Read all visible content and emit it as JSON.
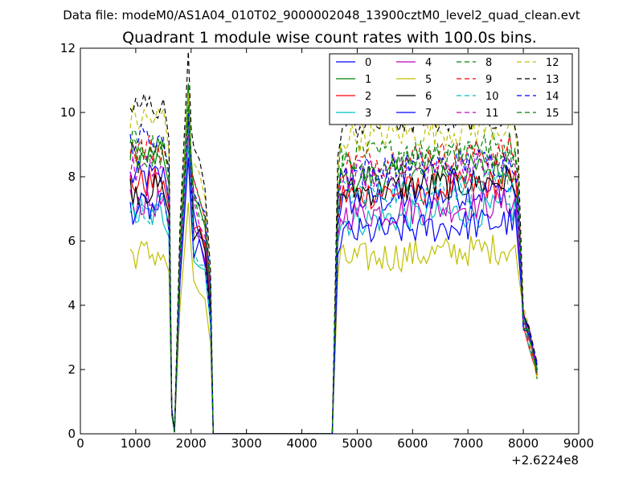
{
  "chart_data": {
    "type": "line",
    "suptitle": "Data file: modeM0/AS1A04_010T02_9000002048_13900cztM0_level2_quad_clean.evt",
    "title": "Quadrant 1 module wise count rates with 100.0s bins.",
    "xlabel": "",
    "ylabel": "",
    "x_offset_label": "+2.6224e8",
    "xlim": [
      0,
      9000
    ],
    "ylim": [
      0,
      12
    ],
    "xticks": [
      0,
      1000,
      2000,
      3000,
      4000,
      5000,
      6000,
      7000,
      8000,
      9000
    ],
    "xtick_labels": [
      "0",
      "1000",
      "2000",
      "3000",
      "4000",
      "5000",
      "6000",
      "7000",
      "8000",
      "9000"
    ],
    "yticks": [
      0,
      2,
      4,
      6,
      8,
      10,
      12
    ],
    "ytick_labels": [
      "0",
      "2",
      "4",
      "6",
      "8",
      "10",
      "12"
    ],
    "grid": false,
    "legend_position": "top-right",
    "legend_columns": 4,
    "series": [
      {
        "name": "0",
        "color": "#0000ff",
        "dash": "solid",
        "level": 7.2,
        "spike": 9.8,
        "early": 8.0
      },
      {
        "name": "1",
        "color": "#008000",
        "dash": "solid",
        "level": 7.9,
        "spike": 10.9,
        "early": 8.6
      },
      {
        "name": "2",
        "color": "#ff0000",
        "dash": "solid",
        "level": 7.4,
        "spike": 9.6,
        "early": 7.8
      },
      {
        "name": "3",
        "color": "#00bfbf",
        "dash": "solid",
        "level": 6.6,
        "spike": 9.0,
        "early": 6.8
      },
      {
        "name": "4",
        "color": "#bf00bf",
        "dash": "solid",
        "level": 6.8,
        "spike": 9.4,
        "early": 7.2
      },
      {
        "name": "5",
        "color": "#bfbf00",
        "dash": "solid",
        "level": 5.4,
        "spike": 7.2,
        "early": 5.6
      },
      {
        "name": "6",
        "color": "#000000",
        "dash": "solid",
        "level": 7.5,
        "spike": 9.9,
        "early": 7.6
      },
      {
        "name": "7",
        "color": "#0000ff",
        "dash": "solid",
        "level": 6.2,
        "spike": 8.6,
        "early": 7.0
      },
      {
        "name": "8",
        "color": "#008000",
        "dash": "dashed",
        "level": 8.6,
        "spike": 10.4,
        "early": 9.0
      },
      {
        "name": "9",
        "color": "#ff0000",
        "dash": "dashed",
        "level": 8.4,
        "spike": 10.2,
        "early": 8.9
      },
      {
        "name": "10",
        "color": "#00bfbf",
        "dash": "dashed",
        "level": 7.4,
        "spike": 9.6,
        "early": 7.0
      },
      {
        "name": "11",
        "color": "#bf00bf",
        "dash": "dashed",
        "level": 8.0,
        "spike": 10.0,
        "early": 8.2
      },
      {
        "name": "12",
        "color": "#bfbf00",
        "dash": "dashed",
        "level": 9.2,
        "spike": 10.6,
        "early": 9.8
      },
      {
        "name": "13",
        "color": "#000000",
        "dash": "dashed",
        "level": 9.6,
        "spike": 11.9,
        "early": 10.2
      },
      {
        "name": "14",
        "color": "#0000ff",
        "dash": "dashed",
        "level": 8.1,
        "spike": 10.0,
        "early": 9.2
      },
      {
        "name": "15",
        "color": "#008000",
        "dash": "dashed",
        "level": 8.3,
        "spike": 10.2,
        "early": 8.8
      }
    ],
    "x_segments": {
      "early_start": 900,
      "early_end": 1500,
      "drop1": [
        1600,
        1700
      ],
      "spike_x": 1950,
      "fall_end": 2400,
      "gap_end": 4550,
      "late_start": 4650,
      "late_end": 7850,
      "tail_end": 8250
    }
  }
}
